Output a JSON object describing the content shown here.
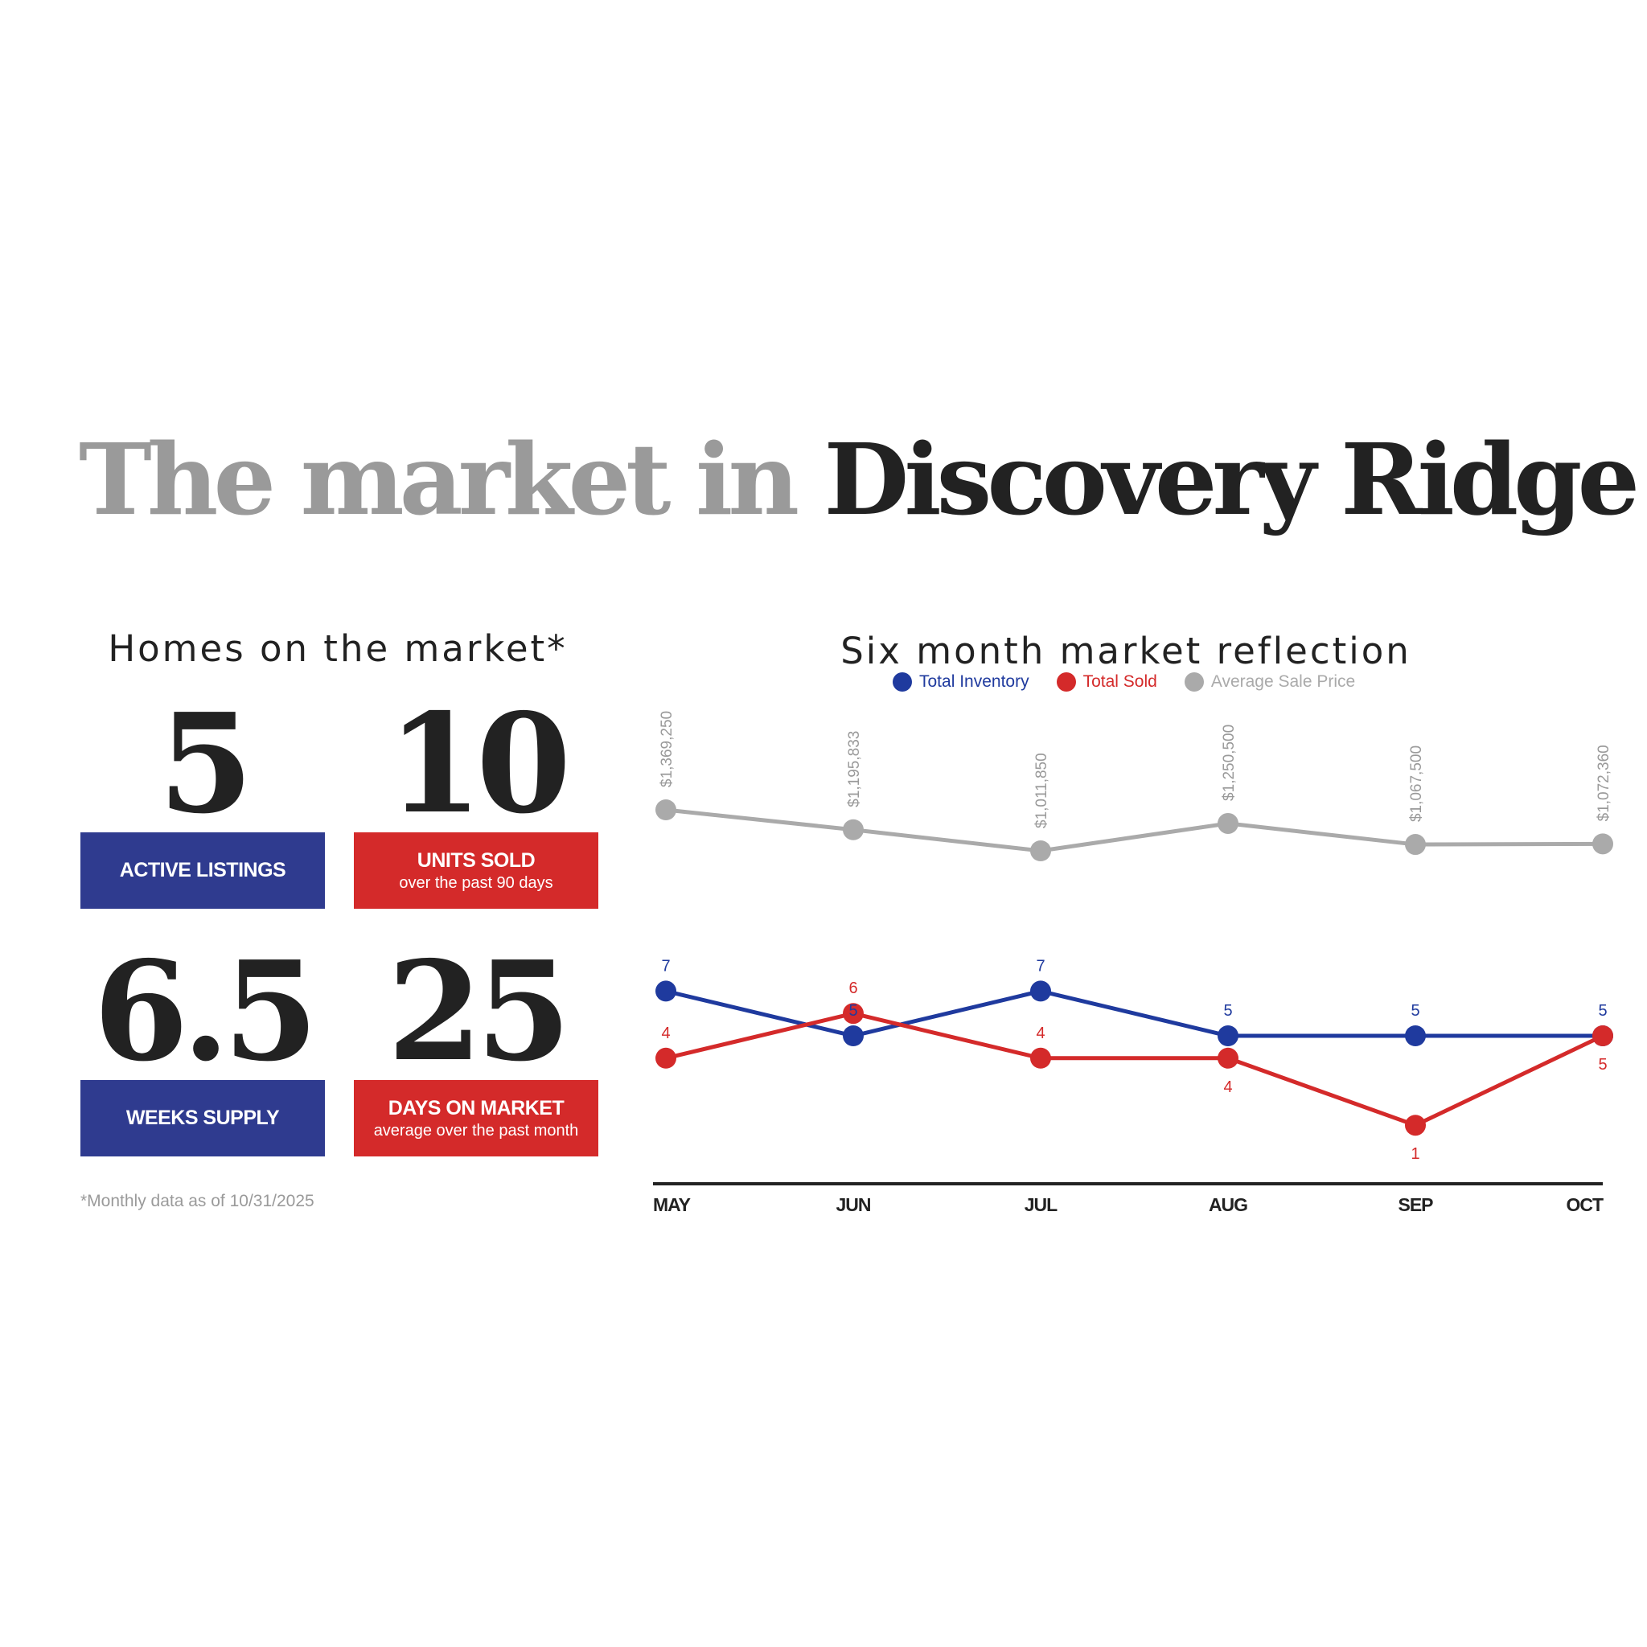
{
  "title": {
    "part1": "The market in",
    "part2": "Discovery Ridge"
  },
  "left_panel": {
    "heading": "Homes on the market*",
    "stats": [
      {
        "value": "5",
        "label": "ACTIVE LISTINGS",
        "sublabel": "",
        "color": "#2f3b8f"
      },
      {
        "value": "10",
        "label": "UNITS SOLD",
        "sublabel": "over the past 90 days",
        "color": "#d42a2a"
      },
      {
        "value": "6.5",
        "label": "WEEKS SUPPLY",
        "sublabel": "",
        "color": "#2f3b8f"
      },
      {
        "value": "25",
        "label": "DAYS ON MARKET",
        "sublabel": "average over the past month",
        "color": "#d42a2a"
      }
    ],
    "footnote": "*Monthly data as of 10/31/2025"
  },
  "chart_data": {
    "type": "line",
    "title": "Six month market reflection",
    "categories": [
      "MAY",
      "JUN",
      "JUL",
      "AUG",
      "SEP",
      "OCT"
    ],
    "legend_position": "top",
    "grid": false,
    "series": [
      {
        "name": "Total Inventory",
        "color": "#1f3a9e",
        "values": [
          7,
          5,
          7,
          5,
          5,
          5
        ]
      },
      {
        "name": "Total Sold",
        "color": "#d42a2a",
        "values": [
          4,
          6,
          4,
          4,
          1,
          5
        ]
      },
      {
        "name": "Average Sale Price",
        "color": "#aaaaaa",
        "values": [
          1369250,
          1195833,
          1011850,
          1250500,
          1067500,
          1072360
        ],
        "labels": [
          "$1,369,250",
          "$1,195,833",
          "$1,011,850",
          "$1,250,500",
          "$1,067,500",
          "$1,072,360"
        ]
      }
    ],
    "legend_text_colors": [
      "#1f3a9e",
      "#d42a2a",
      "#aaaaaa"
    ]
  }
}
